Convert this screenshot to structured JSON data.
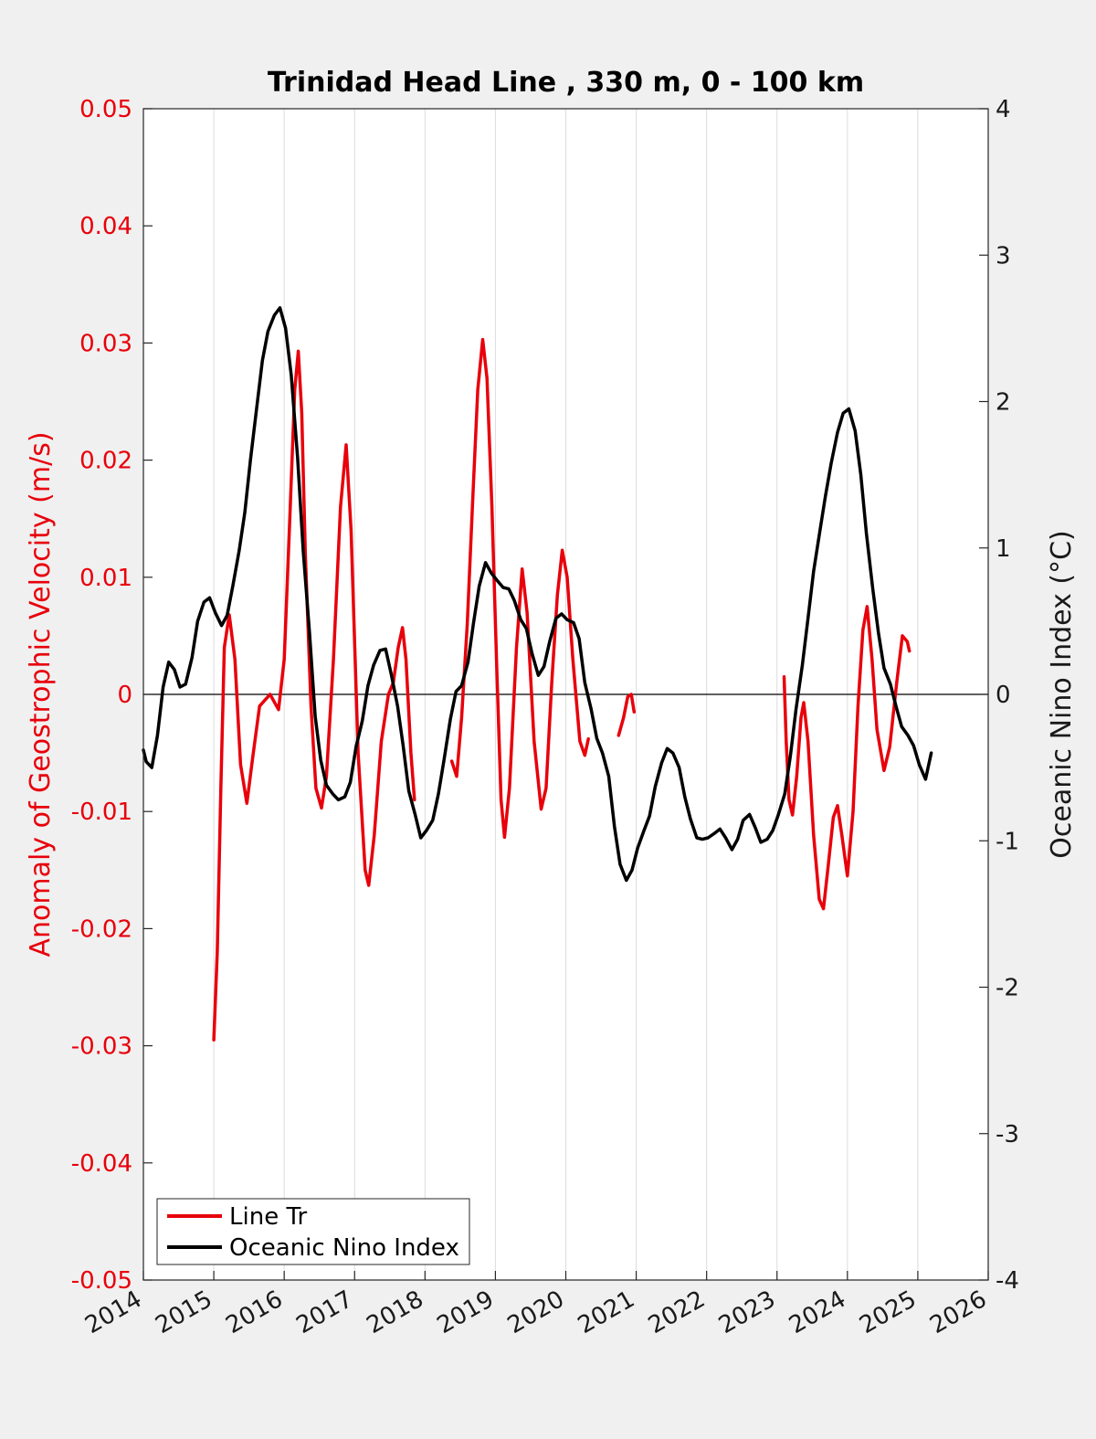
{
  "chart_data": {
    "type": "line",
    "title": "Trinidad Head Line , 330 m, 0 - 100 km",
    "ylabel_left": "Anomaly of Geostrophic Velocity (m/s)",
    "ylabel_right": "Oceanic Nino Index (°C)",
    "xlim": [
      2014,
      2026
    ],
    "ylim_left": [
      -0.05,
      0.05
    ],
    "ylim_right": [
      -4,
      4
    ],
    "x_ticks": [
      "2014",
      "2015",
      "2016",
      "2017",
      "2018",
      "2019",
      "2020",
      "2021",
      "2022",
      "2023",
      "2024",
      "2025",
      "2026"
    ],
    "y_ticks_left": [
      "0.05",
      "0.04",
      "0.03",
      "0.02",
      "0.01",
      "0",
      "-0.01",
      "-0.02",
      "-0.03",
      "-0.04",
      "-0.05"
    ],
    "y_ticks_right": [
      "4",
      "3",
      "2",
      "1",
      "0",
      "-1",
      "-2",
      "-3",
      "-4"
    ],
    "grid": "vertical",
    "legend_position": "bottom-left",
    "colors": {
      "left_axis": "#e8000b",
      "line_tr": "#e8000b",
      "oni": "#000000"
    },
    "series": [
      {
        "name": "Line Tr",
        "axis": "left",
        "segments": [
          [
            [
              2015.0,
              -0.0295
            ],
            [
              2015.05,
              -0.022
            ],
            [
              2015.1,
              -0.008
            ],
            [
              2015.15,
              0.004
            ],
            [
              2015.22,
              0.0068
            ],
            [
              2015.3,
              0.003
            ],
            [
              2015.38,
              -0.006
            ],
            [
              2015.47,
              -0.0093
            ],
            [
              2015.55,
              -0.0055
            ],
            [
              2015.65,
              -0.001
            ],
            [
              2015.8,
              0.0
            ],
            [
              2015.92,
              -0.0013
            ],
            [
              2016.0,
              0.003
            ],
            [
              2016.08,
              0.015
            ],
            [
              2016.15,
              0.026
            ],
            [
              2016.2,
              0.0293
            ],
            [
              2016.25,
              0.024
            ],
            [
              2016.3,
              0.012
            ],
            [
              2016.38,
              -0.001
            ],
            [
              2016.45,
              -0.008
            ],
            [
              2016.53,
              -0.0097
            ],
            [
              2016.6,
              -0.007
            ],
            [
              2016.7,
              0.003
            ],
            [
              2016.8,
              0.016
            ],
            [
              2016.88,
              0.0213
            ],
            [
              2016.95,
              0.014
            ],
            [
              2017.05,
              -0.005
            ],
            [
              2017.15,
              -0.015
            ],
            [
              2017.2,
              -0.0163
            ],
            [
              2017.28,
              -0.012
            ],
            [
              2017.38,
              -0.004
            ],
            [
              2017.48,
              0.0
            ],
            [
              2017.55,
              0.001
            ],
            [
              2017.62,
              0.004
            ],
            [
              2017.68,
              0.0057
            ],
            [
              2017.73,
              0.003
            ],
            [
              2017.8,
              -0.005
            ],
            [
              2017.85,
              -0.009
            ]
          ],
          [
            [
              2018.38,
              -0.0057
            ],
            [
              2018.45,
              -0.007
            ],
            [
              2018.52,
              -0.002
            ],
            [
              2018.6,
              0.006
            ],
            [
              2018.68,
              0.017
            ],
            [
              2018.75,
              0.026
            ],
            [
              2018.82,
              0.0303
            ],
            [
              2018.88,
              0.027
            ],
            [
              2018.95,
              0.016
            ],
            [
              2019.02,
              0.002
            ],
            [
              2019.08,
              -0.009
            ],
            [
              2019.13,
              -0.0122
            ],
            [
              2019.2,
              -0.008
            ],
            [
              2019.3,
              0.004
            ],
            [
              2019.38,
              0.0107
            ],
            [
              2019.45,
              0.007
            ],
            [
              2019.55,
              -0.004
            ],
            [
              2019.65,
              -0.0098
            ],
            [
              2019.72,
              -0.008
            ],
            [
              2019.8,
              0.001
            ],
            [
              2019.88,
              0.0085
            ],
            [
              2019.95,
              0.0123
            ],
            [
              2020.02,
              0.01
            ],
            [
              2020.1,
              0.003
            ],
            [
              2020.2,
              -0.004
            ],
            [
              2020.27,
              -0.0052
            ],
            [
              2020.32,
              -0.0038
            ]
          ],
          [
            [
              2020.75,
              -0.0035
            ],
            [
              2020.82,
              -0.002
            ],
            [
              2020.88,
              -0.0002
            ],
            [
              2020.93,
              0.0
            ],
            [
              2020.97,
              -0.0015
            ]
          ],
          [
            [
              2023.1,
              0.0015
            ],
            [
              2023.13,
              -0.004
            ],
            [
              2023.17,
              -0.009
            ],
            [
              2023.22,
              -0.0103
            ],
            [
              2023.28,
              -0.007
            ],
            [
              2023.34,
              -0.002
            ],
            [
              2023.38,
              -0.0007
            ],
            [
              2023.44,
              -0.004
            ],
            [
              2023.52,
              -0.012
            ],
            [
              2023.6,
              -0.0175
            ],
            [
              2023.66,
              -0.0183
            ],
            [
              2023.72,
              -0.015
            ],
            [
              2023.8,
              -0.0105
            ],
            [
              2023.86,
              -0.0095
            ],
            [
              2023.92,
              -0.012
            ],
            [
              2024.0,
              -0.0155
            ],
            [
              2024.08,
              -0.01
            ],
            [
              2024.15,
              -0.001
            ],
            [
              2024.22,
              0.0055
            ],
            [
              2024.28,
              0.0075
            ],
            [
              2024.35,
              0.003
            ],
            [
              2024.42,
              -0.003
            ],
            [
              2024.52,
              -0.0065
            ],
            [
              2024.6,
              -0.0045
            ],
            [
              2024.7,
              0.001
            ],
            [
              2024.78,
              0.005
            ],
            [
              2024.85,
              0.0045
            ],
            [
              2024.88,
              0.0037
            ]
          ]
        ]
      },
      {
        "name": "Oceanic Nino Index",
        "axis": "right",
        "segments": [
          [
            [
              2014.0,
              -0.38
            ],
            [
              2014.04,
              -0.46
            ],
            [
              2014.12,
              -0.5
            ],
            [
              2014.2,
              -0.28
            ],
            [
              2014.28,
              0.05
            ],
            [
              2014.36,
              0.22
            ],
            [
              2014.44,
              0.17
            ],
            [
              2014.52,
              0.05
            ],
            [
              2014.6,
              0.07
            ],
            [
              2014.69,
              0.25
            ],
            [
              2014.77,
              0.5
            ],
            [
              2014.86,
              0.63
            ],
            [
              2014.94,
              0.66
            ],
            [
              2015.02,
              0.56
            ],
            [
              2015.11,
              0.47
            ],
            [
              2015.19,
              0.54
            ],
            [
              2015.27,
              0.74
            ],
            [
              2015.36,
              0.98
            ],
            [
              2015.44,
              1.24
            ],
            [
              2015.52,
              1.6
            ],
            [
              2015.61,
              1.96
            ],
            [
              2015.69,
              2.28
            ],
            [
              2015.77,
              2.48
            ],
            [
              2015.86,
              2.59
            ],
            [
              2015.94,
              2.64
            ],
            [
              2016.02,
              2.5
            ],
            [
              2016.1,
              2.18
            ],
            [
              2016.19,
              1.62
            ],
            [
              2016.27,
              0.98
            ],
            [
              2016.36,
              0.42
            ],
            [
              2016.44,
              -0.15
            ],
            [
              2016.52,
              -0.45
            ],
            [
              2016.6,
              -0.62
            ],
            [
              2016.69,
              -0.68
            ],
            [
              2016.77,
              -0.72
            ],
            [
              2016.86,
              -0.7
            ],
            [
              2016.94,
              -0.6
            ],
            [
              2017.02,
              -0.36
            ],
            [
              2017.11,
              -0.18
            ],
            [
              2017.19,
              0.06
            ],
            [
              2017.27,
              0.2
            ],
            [
              2017.36,
              0.3
            ],
            [
              2017.44,
              0.31
            ],
            [
              2017.52,
              0.14
            ],
            [
              2017.61,
              -0.08
            ],
            [
              2017.69,
              -0.35
            ],
            [
              2017.77,
              -0.66
            ],
            [
              2017.86,
              -0.82
            ],
            [
              2017.94,
              -0.98
            ],
            [
              2018.02,
              -0.93
            ],
            [
              2018.11,
              -0.86
            ],
            [
              2018.19,
              -0.68
            ],
            [
              2018.27,
              -0.45
            ],
            [
              2018.36,
              -0.17
            ],
            [
              2018.44,
              0.02
            ],
            [
              2018.52,
              0.06
            ],
            [
              2018.61,
              0.22
            ],
            [
              2018.69,
              0.49
            ],
            [
              2018.77,
              0.74
            ],
            [
              2018.86,
              0.9
            ],
            [
              2018.94,
              0.83
            ],
            [
              2019.02,
              0.78
            ],
            [
              2019.11,
              0.73
            ],
            [
              2019.19,
              0.72
            ],
            [
              2019.27,
              0.64
            ],
            [
              2019.36,
              0.51
            ],
            [
              2019.44,
              0.45
            ],
            [
              2019.52,
              0.28
            ],
            [
              2019.61,
              0.13
            ],
            [
              2019.69,
              0.19
            ],
            [
              2019.77,
              0.36
            ],
            [
              2019.86,
              0.52
            ],
            [
              2019.94,
              0.55
            ],
            [
              2020.02,
              0.51
            ],
            [
              2020.11,
              0.49
            ],
            [
              2020.19,
              0.38
            ],
            [
              2020.27,
              0.08
            ],
            [
              2020.36,
              -0.1
            ],
            [
              2020.44,
              -0.3
            ],
            [
              2020.52,
              -0.4
            ],
            [
              2020.61,
              -0.56
            ],
            [
              2020.69,
              -0.9
            ],
            [
              2020.77,
              -1.16
            ],
            [
              2020.86,
              -1.27
            ],
            [
              2020.94,
              -1.2
            ],
            [
              2021.02,
              -1.05
            ],
            [
              2021.11,
              -0.93
            ],
            [
              2021.19,
              -0.83
            ],
            [
              2021.27,
              -0.63
            ],
            [
              2021.36,
              -0.47
            ],
            [
              2021.44,
              -0.37
            ],
            [
              2021.52,
              -0.4
            ],
            [
              2021.61,
              -0.5
            ],
            [
              2021.69,
              -0.7
            ],
            [
              2021.77,
              -0.85
            ],
            [
              2021.86,
              -0.98
            ],
            [
              2021.94,
              -0.99
            ],
            [
              2022.02,
              -0.98
            ],
            [
              2022.11,
              -0.95
            ],
            [
              2022.19,
              -0.92
            ],
            [
              2022.27,
              -0.98
            ],
            [
              2022.36,
              -1.06
            ],
            [
              2022.44,
              -0.99
            ],
            [
              2022.52,
              -0.86
            ],
            [
              2022.61,
              -0.82
            ],
            [
              2022.69,
              -0.91
            ],
            [
              2022.77,
              -1.01
            ],
            [
              2022.86,
              -0.99
            ],
            [
              2022.94,
              -0.93
            ],
            [
              2023.02,
              -0.82
            ],
            [
              2023.11,
              -0.68
            ],
            [
              2023.19,
              -0.42
            ],
            [
              2023.27,
              -0.1
            ],
            [
              2023.36,
              0.2
            ],
            [
              2023.44,
              0.52
            ],
            [
              2023.52,
              0.84
            ],
            [
              2023.61,
              1.12
            ],
            [
              2023.69,
              1.36
            ],
            [
              2023.77,
              1.58
            ],
            [
              2023.86,
              1.79
            ],
            [
              2023.94,
              1.92
            ],
            [
              2024.02,
              1.95
            ],
            [
              2024.11,
              1.8
            ],
            [
              2024.19,
              1.5
            ],
            [
              2024.27,
              1.1
            ],
            [
              2024.36,
              0.72
            ],
            [
              2024.44,
              0.42
            ],
            [
              2024.52,
              0.18
            ],
            [
              2024.61,
              0.07
            ],
            [
              2024.69,
              -0.08
            ],
            [
              2024.77,
              -0.22
            ],
            [
              2024.86,
              -0.28
            ],
            [
              2024.94,
              -0.35
            ],
            [
              2025.02,
              -0.48
            ],
            [
              2025.11,
              -0.58
            ],
            [
              2025.19,
              -0.4
            ]
          ]
        ]
      }
    ]
  },
  "legend": {
    "items": [
      {
        "label": "Line Tr",
        "color": "#e8000b"
      },
      {
        "label": "Oceanic Nino Index",
        "color": "#000000"
      }
    ]
  }
}
